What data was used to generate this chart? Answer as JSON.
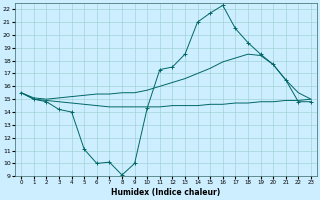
{
  "xlabel": "Humidex (Indice chaleur)",
  "bg_color": "#cceeff",
  "line_color": "#006666",
  "xlim": [
    -0.5,
    23.5
  ],
  "ylim": [
    9,
    22.5
  ],
  "yticks": [
    9,
    10,
    11,
    12,
    13,
    14,
    15,
    16,
    17,
    18,
    19,
    20,
    21,
    22
  ],
  "xticks": [
    0,
    1,
    2,
    3,
    4,
    5,
    6,
    7,
    8,
    9,
    10,
    11,
    12,
    13,
    14,
    15,
    16,
    17,
    18,
    19,
    20,
    21,
    22,
    23
  ],
  "line1_x": [
    0,
    1,
    2,
    3,
    4,
    5,
    6,
    7,
    8,
    9,
    10,
    11,
    12,
    13,
    14,
    15,
    16,
    17,
    18,
    19,
    20,
    21,
    22,
    23
  ],
  "line1_y": [
    15.5,
    15.0,
    14.8,
    14.2,
    14.0,
    11.1,
    10.0,
    10.1,
    9.1,
    10.0,
    14.3,
    17.3,
    17.5,
    18.5,
    21.0,
    21.7,
    22.3,
    20.5,
    19.4,
    18.5,
    17.7,
    16.5,
    14.8,
    14.8
  ],
  "line2_x": [
    0,
    1,
    2,
    3,
    4,
    5,
    6,
    7,
    8,
    9,
    10,
    11,
    12,
    13,
    14,
    15,
    16,
    17,
    18,
    19,
    20,
    21,
    22,
    23
  ],
  "line2_y": [
    15.5,
    15.1,
    15.0,
    15.1,
    15.2,
    15.3,
    15.4,
    15.4,
    15.5,
    15.5,
    15.7,
    16.0,
    16.3,
    16.6,
    17.0,
    17.4,
    17.9,
    18.2,
    18.5,
    18.4,
    17.7,
    16.5,
    15.5,
    15.0
  ],
  "line3_x": [
    0,
    1,
    2,
    3,
    4,
    5,
    6,
    7,
    8,
    9,
    10,
    11,
    12,
    13,
    14,
    15,
    16,
    17,
    18,
    19,
    20,
    21,
    22,
    23
  ],
  "line3_y": [
    15.5,
    15.0,
    14.9,
    14.8,
    14.7,
    14.6,
    14.5,
    14.4,
    14.4,
    14.4,
    14.4,
    14.4,
    14.5,
    14.5,
    14.5,
    14.6,
    14.6,
    14.7,
    14.7,
    14.8,
    14.8,
    14.9,
    14.9,
    15.0
  ]
}
